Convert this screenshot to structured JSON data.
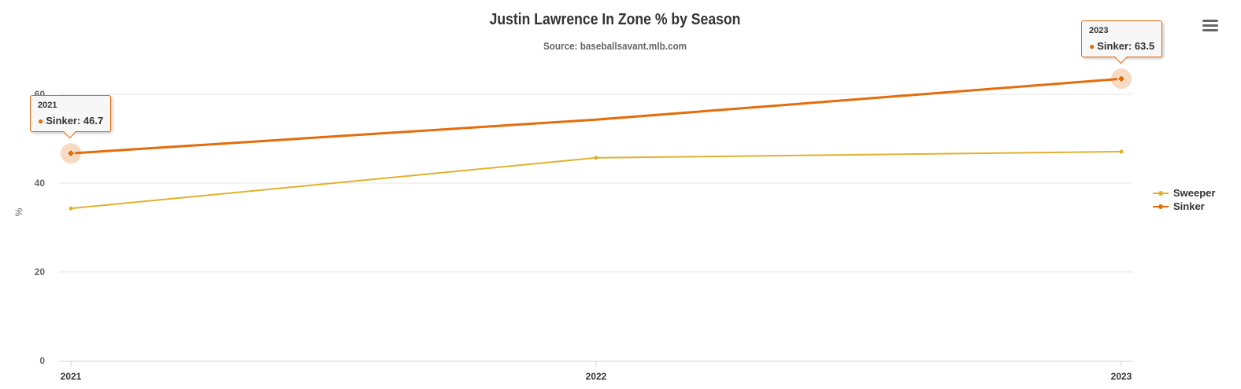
{
  "chart_data": {
    "type": "line",
    "title": "Justin Lawrence In Zone % by Season",
    "subtitle": "Source: baseballsavant.mlb.com",
    "xlabel": "",
    "ylabel": "%",
    "categories": [
      "2021",
      "2022",
      "2023"
    ],
    "ylim": [
      0,
      60
    ],
    "yticks": [
      "0",
      "20",
      "40",
      "60"
    ],
    "grid": true,
    "legend_placement": "right",
    "series": [
      {
        "name": "Sweeper",
        "color": "#e1b12c",
        "values": [
          34.3,
          45.7,
          47.1
        ]
      },
      {
        "name": "Sinker",
        "color": "#e46c0a",
        "values": [
          46.7,
          54.3,
          63.5
        ]
      }
    ]
  },
  "tooltips": [
    {
      "header": "2021",
      "label": "Sinker: 46.7"
    },
    {
      "header": "2023",
      "label": "Sinker: 63.5"
    }
  ],
  "menu_icon": "hamburger-icon"
}
